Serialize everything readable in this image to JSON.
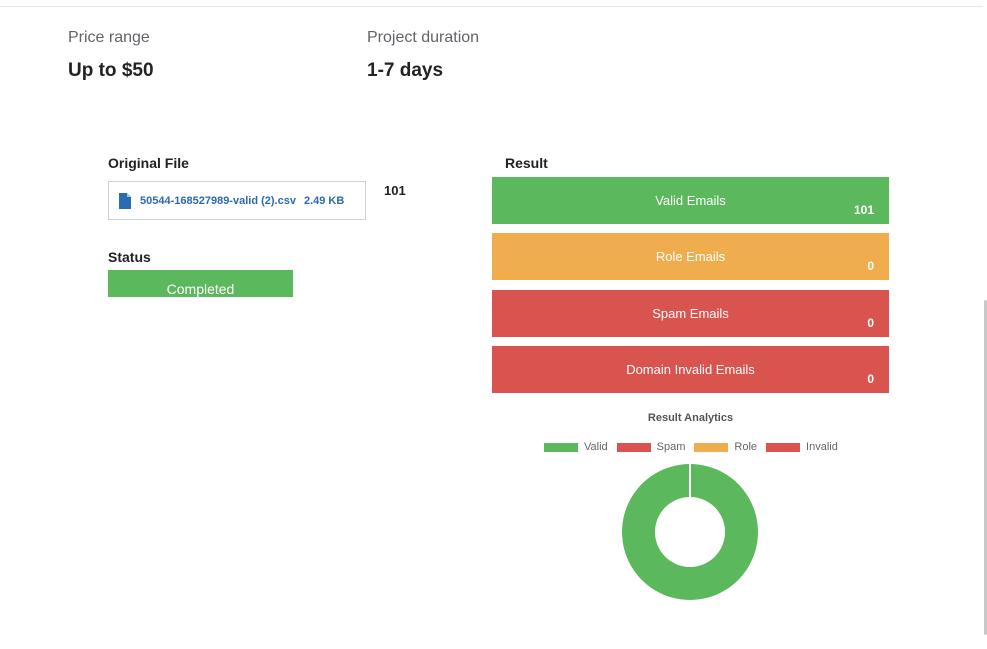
{
  "overview": {
    "price": {
      "label": "Price range",
      "value": "Up to $50"
    },
    "duration": {
      "label": "Project duration",
      "value": "1-7 days"
    }
  },
  "original_file": {
    "title": "Original File",
    "file_name": "50544-168527989-valid (2).csv",
    "file_size": "2.49 KB",
    "count": "101",
    "icon": "file-icon"
  },
  "status": {
    "title": "Status",
    "value": "Completed",
    "color": "#5cb85c"
  },
  "result": {
    "title": "Result",
    "items": [
      {
        "label": "Valid Emails",
        "count": "101",
        "color": "#5cb85c"
      },
      {
        "label": "Role Emails",
        "count": "0",
        "color": "#f0ad4e"
      },
      {
        "label": "Spam Emails",
        "count": "0",
        "color": "#d9534f"
      },
      {
        "label": "Domain Invalid Emails",
        "count": "0",
        "color": "#d9534f"
      }
    ]
  },
  "chart_data": {
    "type": "pie",
    "variant": "doughnut",
    "title": "Result Analytics",
    "legend_placement": "top",
    "categories": [
      "Valid",
      "Spam",
      "Role",
      "Invalid"
    ],
    "values": [
      101,
      0,
      0,
      0
    ],
    "colors": [
      "#5cb85c",
      "#d9534f",
      "#f0ad4e",
      "#d9534f"
    ]
  }
}
